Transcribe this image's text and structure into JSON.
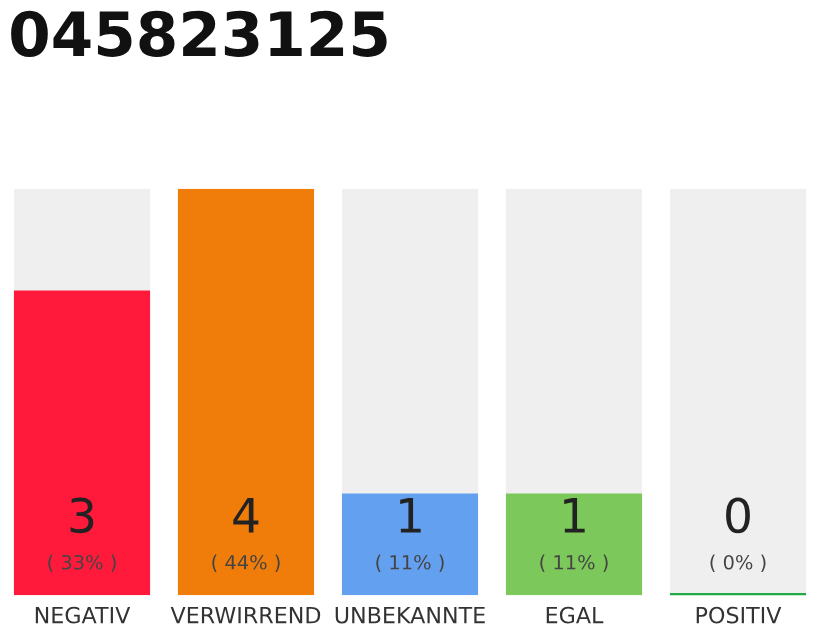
{
  "chart_data": {
    "type": "bar",
    "title": "045823125",
    "categories": [
      "NEGATIV",
      "VERWIRREND",
      "UNBEKANNTE",
      "EGAL",
      "POSITIV"
    ],
    "values": [
      3,
      4,
      1,
      1,
      0
    ],
    "value_labels": [
      "3\n( 33% )",
      "4\n( 44% )",
      "1\n( 11% )",
      "1\n( 11% )",
      "0\n( 0% )"
    ],
    "colors": [
      "#ff1a3c",
      "#f07d0a",
      "#64a0f0",
      "#7dc85a",
      "#22aa44"
    ],
    "grid": false,
    "legend": false
  }
}
